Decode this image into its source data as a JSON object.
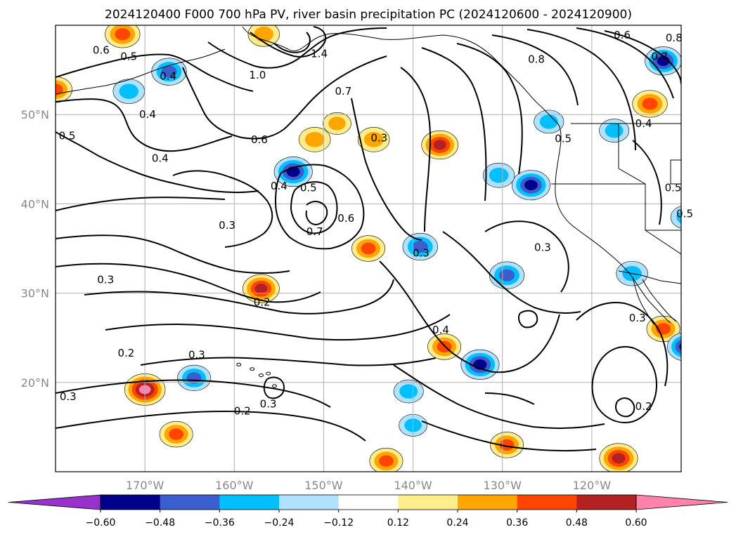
{
  "chart_data": {
    "type": "heatmap",
    "title": "2024120400 F000 700 hPa PV, river basin precipitation PC (2024120600 - 2024120900)",
    "lon_range": [
      -180,
      -110
    ],
    "lat_range": [
      10,
      60
    ],
    "lat_ticks": [
      {
        "value": 20,
        "label": "20°N"
      },
      {
        "value": 30,
        "label": "30°N"
      },
      {
        "value": 40,
        "label": "40°N"
      },
      {
        "value": 50,
        "label": "50°N"
      }
    ],
    "lon_ticks": [
      {
        "value": -170,
        "label": "170°W"
      },
      {
        "value": -160,
        "label": "160°W"
      },
      {
        "value": -150,
        "label": "150°W"
      },
      {
        "value": -140,
        "label": "140°W"
      },
      {
        "value": -130,
        "label": "130°W"
      },
      {
        "value": -120,
        "label": "120°W"
      }
    ],
    "grid": true,
    "colorbar": {
      "levels": [
        -0.72,
        -0.6,
        -0.48,
        -0.36,
        -0.24,
        -0.12,
        0.12,
        0.24,
        0.36,
        0.48,
        0.6,
        0.72
      ],
      "tick_labels": [
        "−0.60",
        "−0.48",
        "−0.36",
        "−0.24",
        "−0.12",
        "0.12",
        "0.24",
        "0.36",
        "0.48",
        "0.60"
      ],
      "colors": [
        "#9932cc",
        "#00008b",
        "#3a5fcd",
        "#00bfff",
        "#b0e2ff",
        "#ffffff",
        "#ffec8b",
        "#ffa500",
        "#ff4500",
        "#b22222",
        "#ff82ab"
      ],
      "extend": "both"
    },
    "shaded_anomalies": [
      {
        "lon": -172.5,
        "lat": 59.0,
        "value": 0.45
      },
      {
        "lon": -167.3,
        "lat": 54.8,
        "value": -0.45
      },
      {
        "lon": -171.8,
        "lat": 52.6,
        "value": -0.35
      },
      {
        "lon": -180.0,
        "lat": 52.8,
        "value": 0.4
      },
      {
        "lon": -156.7,
        "lat": 59.0,
        "value": 0.35
      },
      {
        "lon": -151.0,
        "lat": 47.2,
        "value": 0.35
      },
      {
        "lon": -148.5,
        "lat": 49.0,
        "value": 0.25
      },
      {
        "lon": -144.4,
        "lat": 47.2,
        "value": 0.35
      },
      {
        "lon": -153.4,
        "lat": 43.6,
        "value": -0.55
      },
      {
        "lon": -137.0,
        "lat": 46.6,
        "value": 0.5
      },
      {
        "lon": -126.8,
        "lat": 42.1,
        "value": -0.55
      },
      {
        "lon": -130.4,
        "lat": 43.2,
        "value": -0.35
      },
      {
        "lon": -124.8,
        "lat": 49.2,
        "value": -0.3
      },
      {
        "lon": -117.5,
        "lat": 48.2,
        "value": -0.3
      },
      {
        "lon": -112.0,
        "lat": 56.0,
        "value": -0.5
      },
      {
        "lon": -113.5,
        "lat": 51.2,
        "value": 0.45
      },
      {
        "lon": -109.5,
        "lat": 38.5,
        "value": -0.3
      },
      {
        "lon": -139.2,
        "lat": 35.2,
        "value": -0.45
      },
      {
        "lon": -145.0,
        "lat": 35.0,
        "value": 0.4
      },
      {
        "lon": -129.5,
        "lat": 32.0,
        "value": -0.45
      },
      {
        "lon": -115.5,
        "lat": 32.2,
        "value": -0.35
      },
      {
        "lon": -112.0,
        "lat": 26.0,
        "value": 0.4
      },
      {
        "lon": -109.5,
        "lat": 24.0,
        "value": -0.5
      },
      {
        "lon": -157.0,
        "lat": 30.5,
        "value": 0.5
      },
      {
        "lon": -164.5,
        "lat": 20.5,
        "value": -0.4
      },
      {
        "lon": -170.0,
        "lat": 19.2,
        "value": 0.62
      },
      {
        "lon": -166.5,
        "lat": 14.2,
        "value": 0.4
      },
      {
        "lon": -136.5,
        "lat": 24.0,
        "value": 0.4
      },
      {
        "lon": -132.5,
        "lat": 22.0,
        "value": -0.55
      },
      {
        "lon": -140.5,
        "lat": 19.0,
        "value": -0.3
      },
      {
        "lon": -140.0,
        "lat": 15.2,
        "value": -0.25
      },
      {
        "lon": -143.0,
        "lat": 11.2,
        "value": 0.4
      },
      {
        "lon": -129.5,
        "lat": 13.0,
        "value": 0.4
      },
      {
        "lon": -117.0,
        "lat": 11.5,
        "value": 0.55
      }
    ],
    "contour_labels": [
      {
        "text": "0.6",
        "lon": -174.9,
        "lat": 57.2
      },
      {
        "text": "0.5",
        "lon": -171.8,
        "lat": 56.5
      },
      {
        "text": "0.4",
        "lon": -167.4,
        "lat": 54.3
      },
      {
        "text": "0.4",
        "lon": -169.7,
        "lat": 50.0
      },
      {
        "text": "0.4",
        "lon": -168.3,
        "lat": 45.1
      },
      {
        "text": "0.5",
        "lon": -178.7,
        "lat": 47.6
      },
      {
        "text": "1.0",
        "lon": -157.4,
        "lat": 54.4
      },
      {
        "text": "1.4",
        "lon": -150.5,
        "lat": 56.8
      },
      {
        "text": "0.7",
        "lon": -147.8,
        "lat": 52.6
      },
      {
        "text": "0.6",
        "lon": -157.2,
        "lat": 47.2
      },
      {
        "text": "0.3",
        "lon": -143.8,
        "lat": 47.4
      },
      {
        "text": "0.4",
        "lon": -155.0,
        "lat": 42.0
      },
      {
        "text": "0.5",
        "lon": -151.7,
        "lat": 41.8
      },
      {
        "text": "0.3",
        "lon": -160.8,
        "lat": 37.6
      },
      {
        "text": "0.7",
        "lon": -151.0,
        "lat": 36.9
      },
      {
        "text": "0.6",
        "lon": -147.5,
        "lat": 38.4
      },
      {
        "text": "0.3",
        "lon": -139.1,
        "lat": 34.5
      },
      {
        "text": "0.3",
        "lon": -125.5,
        "lat": 35.1
      },
      {
        "text": "0.3",
        "lon": -174.4,
        "lat": 31.5
      },
      {
        "text": "0.2",
        "lon": -156.9,
        "lat": 29.0
      },
      {
        "text": "0.2",
        "lon": -172.1,
        "lat": 23.3
      },
      {
        "text": "0.3",
        "lon": -164.2,
        "lat": 23.1
      },
      {
        "text": "0.3",
        "lon": -178.6,
        "lat": 18.4
      },
      {
        "text": "0.3",
        "lon": -156.2,
        "lat": 17.6
      },
      {
        "text": "0.2",
        "lon": -159.1,
        "lat": 16.8
      },
      {
        "text": "0.4",
        "lon": -136.9,
        "lat": 25.9
      },
      {
        "text": "0.2",
        "lon": -114.2,
        "lat": 17.3
      },
      {
        "text": "0.3",
        "lon": -114.9,
        "lat": 27.2
      },
      {
        "text": "0.8",
        "lon": -126.2,
        "lat": 56.2
      },
      {
        "text": "0.6",
        "lon": -116.6,
        "lat": 58.9
      },
      {
        "text": "0.8",
        "lon": -110.8,
        "lat": 58.6
      },
      {
        "text": "0.7",
        "lon": -112.4,
        "lat": 56.5
      },
      {
        "text": "0.4",
        "lon": -114.2,
        "lat": 49.0
      },
      {
        "text": "0.5",
        "lon": -123.2,
        "lat": 47.3
      },
      {
        "text": "0.5",
        "lon": -110.9,
        "lat": 41.8
      },
      {
        "text": "0.5",
        "lon": -109.6,
        "lat": 38.9
      }
    ]
  }
}
